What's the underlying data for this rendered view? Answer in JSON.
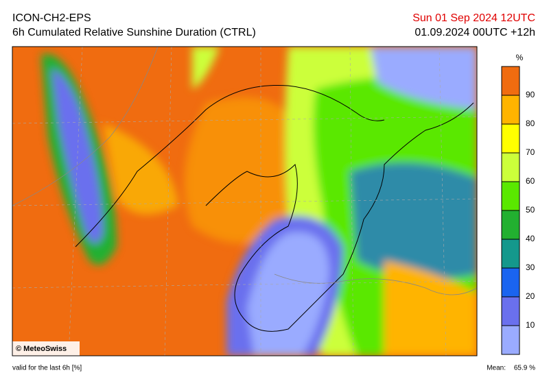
{
  "header": {
    "model": "ICON-CH2-EPS",
    "title": "6h Cumulated Relative Sunshine Duration (CTRL)",
    "date": "Sun 01 Sep 2024 12UTC",
    "run": "01.09.2024 00UTC +12h"
  },
  "legend": {
    "unit": "%",
    "ticks": [
      10,
      20,
      30,
      40,
      50,
      60,
      70,
      80,
      90
    ],
    "colors": [
      "#9aabff",
      "#6a70ee",
      "#1a64f0",
      "#14988c",
      "#22b030",
      "#5ae800",
      "#ccff3a",
      "#ffff00",
      "#ffb400",
      "#f06c10"
    ]
  },
  "copyright": "© MeteoSwiss",
  "footer": {
    "validity": "valid for the last 6h [%]",
    "mean_label": "Mean:",
    "mean_value": "65.9 %"
  }
}
